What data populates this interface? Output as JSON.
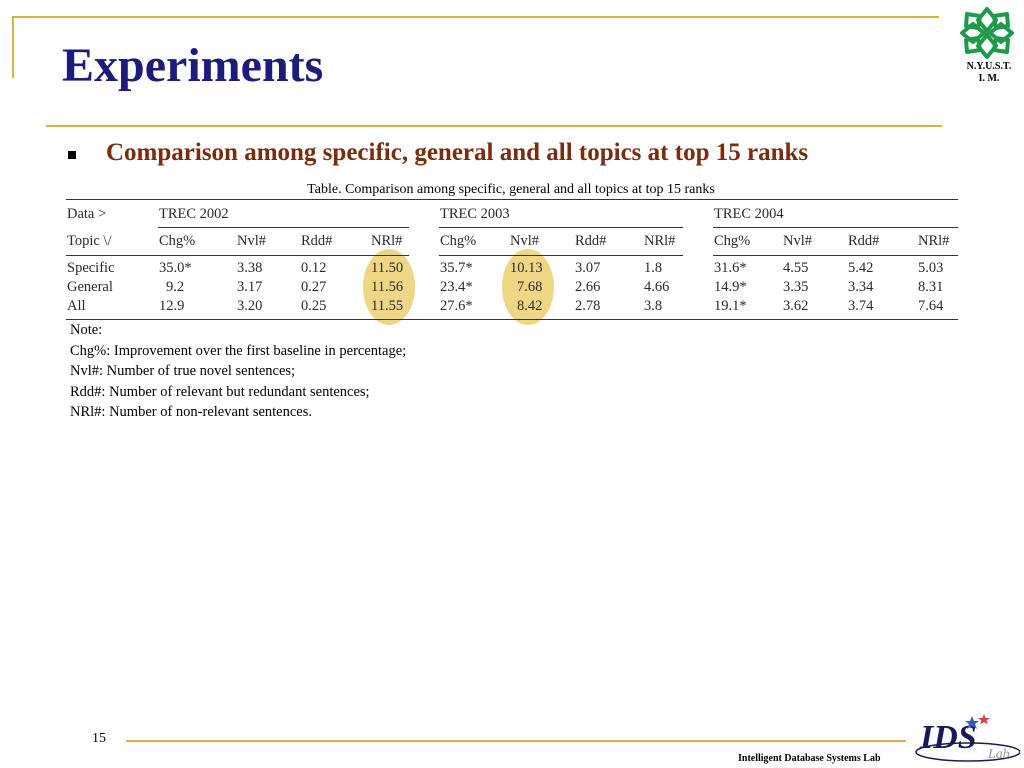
{
  "slide": {
    "title": "Experiments",
    "subtitle": "Comparison among specific, general and all topics at top 15 ranks",
    "logo_text_line1": "N.Y.U.S.T.",
    "logo_text_line2": "I. M.",
    "page_number": "15",
    "lab_name": "Intelligent Database Systems Lab",
    "lab_logo_text": "IDS",
    "lab_logo_script": "Lab",
    "accent_color": "#d9b23a",
    "title_color": "#1c1c7a",
    "subtitle_color": "#7a2c0d",
    "highlight_color": "#eccf6e"
  },
  "table": {
    "caption": "Table. Comparison among specific, general and all topics at top 15 ranks",
    "corner_top": "Data >",
    "corner_bottom": "Topic \\/",
    "groups": [
      "TREC 2002",
      "TREC 2003",
      "TREC 2004"
    ],
    "columns": [
      "Chg%",
      "Nvl#",
      "Rdd#",
      "NRl#"
    ],
    "rows": [
      {
        "label": "Specific",
        "cells": [
          "35.0*",
          "3.38",
          "0.12",
          "11.50",
          "35.7*",
          "10.13",
          "3.07",
          "1.8",
          "31.6*",
          "4.55",
          "5.42",
          "5.03"
        ]
      },
      {
        "label": "General",
        "cells": [
          "9.2",
          "3.17",
          "0.27",
          "11.56",
          "23.4*",
          "7.68",
          "2.66",
          "4.66",
          "14.9*",
          "3.35",
          "3.34",
          "8.31"
        ]
      },
      {
        "label": "All",
        "cells": [
          "12.9",
          "3.20",
          "0.25",
          "11.55",
          "27.6*",
          "8.42",
          "2.78",
          "3.8",
          "19.1*",
          "3.62",
          "3.74",
          "7.64"
        ]
      }
    ]
  },
  "notes": [
    "Note:",
    "Chg%: Improvement over the first baseline in percentage;",
    "Nvl#: Number of true novel sentences;",
    "Rdd#: Number of relevant but redundant sentences;",
    "NRl#: Number of non-relevant sentences."
  ]
}
